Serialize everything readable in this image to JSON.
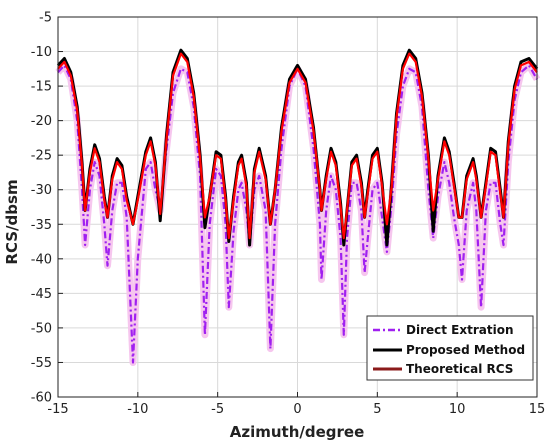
{
  "chart_data": {
    "type": "line",
    "xlabel": "Azimuth/degree",
    "ylabel": "RCS/dbsm",
    "xlim": [
      -15,
      15
    ],
    "ylim": [
      -60,
      -5
    ],
    "xticks": [
      -15,
      -10,
      -5,
      0,
      5,
      10,
      15
    ],
    "yticks": [
      -60,
      -55,
      -50,
      -45,
      -40,
      -35,
      -30,
      -25,
      -20,
      -15,
      -10,
      -5
    ],
    "grid": true,
    "legend_position": "bottom-right",
    "colors": {
      "direct": "#a020f0",
      "direct_band": "#f6c6ee",
      "proposed": "#000000",
      "theoretical": "#8b1a1a",
      "theoretical_display": "#ff0000"
    },
    "series": [
      {
        "name": "Direct Extration",
        "style": "dashdot",
        "points": [
          [
            -15,
            -13
          ],
          [
            -14.6,
            -12
          ],
          [
            -14.2,
            -14
          ],
          [
            -13.8,
            -20
          ],
          [
            -13.5,
            -30
          ],
          [
            -13.3,
            -38
          ],
          [
            -13.0,
            -30
          ],
          [
            -12.7,
            -26
          ],
          [
            -12.4,
            -28
          ],
          [
            -12.1,
            -35
          ],
          [
            -11.9,
            -41
          ],
          [
            -11.6,
            -33
          ],
          [
            -11.3,
            -29
          ],
          [
            -11.0,
            -29
          ],
          [
            -10.7,
            -34
          ],
          [
            -10.3,
            -55
          ],
          [
            -10.0,
            -40
          ],
          [
            -9.5,
            -27
          ],
          [
            -9.2,
            -26
          ],
          [
            -8.9,
            -30
          ],
          [
            -8.6,
            -33
          ],
          [
            -8.2,
            -24
          ],
          [
            -7.8,
            -16
          ],
          [
            -7.3,
            -12.5
          ],
          [
            -6.9,
            -13
          ],
          [
            -6.5,
            -18
          ],
          [
            -6.1,
            -28
          ],
          [
            -5.8,
            -51
          ],
          [
            -5.5,
            -35
          ],
          [
            -5.1,
            -27
          ],
          [
            -4.8,
            -28
          ],
          [
            -4.5,
            -35
          ],
          [
            -4.3,
            -47
          ],
          [
            -4.0,
            -36
          ],
          [
            -3.7,
            -30
          ],
          [
            -3.5,
            -29
          ],
          [
            -3.2,
            -33
          ],
          [
            -3.0,
            -38
          ],
          [
            -2.7,
            -30
          ],
          [
            -2.4,
            -28
          ],
          [
            -2.0,
            -33
          ],
          [
            -1.7,
            -53
          ],
          [
            -1.4,
            -35
          ],
          [
            -1.0,
            -24
          ],
          [
            -0.5,
            -15
          ],
          [
            0.0,
            -12.5
          ],
          [
            0.5,
            -15
          ],
          [
            1.0,
            -24
          ],
          [
            1.4,
            -35
          ],
          [
            1.5,
            -43
          ],
          [
            1.8,
            -33
          ],
          [
            2.1,
            -28
          ],
          [
            2.4,
            -30
          ],
          [
            2.7,
            -37
          ],
          [
            2.9,
            -51
          ],
          [
            3.1,
            -37
          ],
          [
            3.4,
            -29
          ],
          [
            3.7,
            -29
          ],
          [
            4.0,
            -33
          ],
          [
            4.2,
            -42
          ],
          [
            4.4,
            -37
          ],
          [
            4.7,
            -30
          ],
          [
            5.0,
            -29
          ],
          [
            5.3,
            -34
          ],
          [
            5.6,
            -39
          ],
          [
            5.9,
            -32
          ],
          [
            6.2,
            -22
          ],
          [
            6.6,
            -15
          ],
          [
            7.0,
            -12.5
          ],
          [
            7.4,
            -13
          ],
          [
            7.8,
            -18
          ],
          [
            8.2,
            -30
          ],
          [
            8.5,
            -37
          ],
          [
            8.8,
            -31
          ],
          [
            9.2,
            -26
          ],
          [
            9.5,
            -29
          ],
          [
            9.8,
            -34
          ],
          [
            10.1,
            -38
          ],
          [
            10.3,
            -43
          ],
          [
            10.6,
            -33
          ],
          [
            11.0,
            -29
          ],
          [
            11.2,
            -33
          ],
          [
            11.5,
            -47
          ],
          [
            11.8,
            -33
          ],
          [
            12.1,
            -29
          ],
          [
            12.4,
            -29
          ],
          [
            12.7,
            -35
          ],
          [
            12.9,
            -38
          ],
          [
            13.2,
            -26
          ],
          [
            13.6,
            -17
          ],
          [
            14.0,
            -13
          ],
          [
            14.5,
            -12
          ],
          [
            15,
            -14
          ]
        ]
      },
      {
        "name": "Proposed Method",
        "style": "solid",
        "points": [
          [
            -15,
            -12
          ],
          [
            -14.6,
            -11
          ],
          [
            -14.2,
            -13
          ],
          [
            -13.8,
            -18
          ],
          [
            -13.5,
            -26
          ],
          [
            -13.3,
            -33
          ],
          [
            -13.0,
            -27
          ],
          [
            -12.7,
            -23.5
          ],
          [
            -12.4,
            -25.5
          ],
          [
            -12.1,
            -31
          ],
          [
            -11.9,
            -34
          ],
          [
            -11.6,
            -28
          ],
          [
            -11.3,
            -25.5
          ],
          [
            -11.0,
            -26.5
          ],
          [
            -10.7,
            -31
          ],
          [
            -10.3,
            -35
          ],
          [
            -10.0,
            -31
          ],
          [
            -9.5,
            -24.5
          ],
          [
            -9.2,
            -22.5
          ],
          [
            -8.9,
            -26
          ],
          [
            -8.6,
            -34.5
          ],
          [
            -8.2,
            -22
          ],
          [
            -7.8,
            -13
          ],
          [
            -7.3,
            -9.8
          ],
          [
            -6.9,
            -11
          ],
          [
            -6.5,
            -16
          ],
          [
            -6.1,
            -25
          ],
          [
            -5.8,
            -35.5
          ],
          [
            -5.5,
            -31
          ],
          [
            -5.1,
            -24.5
          ],
          [
            -4.8,
            -25
          ],
          [
            -4.5,
            -31
          ],
          [
            -4.3,
            -37.5
          ],
          [
            -4.0,
            -31
          ],
          [
            -3.7,
            -26
          ],
          [
            -3.5,
            -25
          ],
          [
            -3.2,
            -29
          ],
          [
            -3.0,
            -38
          ],
          [
            -2.7,
            -27
          ],
          [
            -2.4,
            -24
          ],
          [
            -2.0,
            -28
          ],
          [
            -1.7,
            -35
          ],
          [
            -1.4,
            -30
          ],
          [
            -1.0,
            -21
          ],
          [
            -0.5,
            -14
          ],
          [
            0.0,
            -12
          ],
          [
            0.5,
            -14
          ],
          [
            1.0,
            -21
          ],
          [
            1.4,
            -30
          ],
          [
            1.5,
            -33
          ],
          [
            1.8,
            -28
          ],
          [
            2.1,
            -24
          ],
          [
            2.4,
            -26
          ],
          [
            2.7,
            -32
          ],
          [
            2.9,
            -38
          ],
          [
            3.1,
            -33
          ],
          [
            3.4,
            -26
          ],
          [
            3.7,
            -25
          ],
          [
            4.0,
            -29
          ],
          [
            4.2,
            -34
          ],
          [
            4.4,
            -30
          ],
          [
            4.7,
            -25
          ],
          [
            5.0,
            -24
          ],
          [
            5.3,
            -29
          ],
          [
            5.6,
            -38
          ],
          [
            5.9,
            -29
          ],
          [
            6.2,
            -19
          ],
          [
            6.6,
            -12
          ],
          [
            7.0,
            -9.8
          ],
          [
            7.4,
            -11
          ],
          [
            7.8,
            -16
          ],
          [
            8.2,
            -25
          ],
          [
            8.5,
            -36
          ],
          [
            8.8,
            -28
          ],
          [
            9.2,
            -22.5
          ],
          [
            9.5,
            -24.5
          ],
          [
            9.8,
            -29
          ],
          [
            10.1,
            -34
          ],
          [
            10.3,
            -34
          ],
          [
            10.6,
            -28
          ],
          [
            11.0,
            -25.5
          ],
          [
            11.2,
            -28
          ],
          [
            11.5,
            -34
          ],
          [
            11.8,
            -29
          ],
          [
            12.1,
            -24
          ],
          [
            12.4,
            -24.5
          ],
          [
            12.7,
            -30
          ],
          [
            12.9,
            -34
          ],
          [
            13.2,
            -23
          ],
          [
            13.6,
            -15
          ],
          [
            14.0,
            -11.5
          ],
          [
            14.5,
            -11
          ],
          [
            15,
            -12.5
          ]
        ]
      },
      {
        "name": "Theoretical RCS",
        "style": "solid",
        "points": [
          [
            -15,
            -12.5
          ],
          [
            -14.6,
            -11.5
          ],
          [
            -14.2,
            -13.5
          ],
          [
            -13.8,
            -18.5
          ],
          [
            -13.5,
            -26.5
          ],
          [
            -13.3,
            -33
          ],
          [
            -13.0,
            -27.5
          ],
          [
            -12.7,
            -24
          ],
          [
            -12.4,
            -26
          ],
          [
            -12.1,
            -31.5
          ],
          [
            -11.9,
            -34
          ],
          [
            -11.6,
            -28.5
          ],
          [
            -11.3,
            -26
          ],
          [
            -11.0,
            -27
          ],
          [
            -10.7,
            -31.5
          ],
          [
            -10.3,
            -35
          ],
          [
            -10.0,
            -31.5
          ],
          [
            -9.5,
            -25
          ],
          [
            -9.2,
            -23
          ],
          [
            -8.9,
            -26.5
          ],
          [
            -8.6,
            -33.5
          ],
          [
            -8.2,
            -22.5
          ],
          [
            -7.8,
            -13.5
          ],
          [
            -7.3,
            -10.3
          ],
          [
            -6.9,
            -11.5
          ],
          [
            -6.5,
            -16.5
          ],
          [
            -6.1,
            -25.5
          ],
          [
            -5.8,
            -34
          ],
          [
            -5.5,
            -31
          ],
          [
            -5.1,
            -25
          ],
          [
            -4.8,
            -25.5
          ],
          [
            -4.5,
            -31.5
          ],
          [
            -4.3,
            -37
          ],
          [
            -4.0,
            -31.5
          ],
          [
            -3.7,
            -26.5
          ],
          [
            -3.5,
            -25.5
          ],
          [
            -3.2,
            -29.5
          ],
          [
            -3.0,
            -37
          ],
          [
            -2.7,
            -27.5
          ],
          [
            -2.4,
            -24.5
          ],
          [
            -2.0,
            -28.5
          ],
          [
            -1.7,
            -35
          ],
          [
            -1.4,
            -30
          ],
          [
            -1.0,
            -21.5
          ],
          [
            -0.5,
            -14.5
          ],
          [
            0.0,
            -12.5
          ],
          [
            0.5,
            -14.5
          ],
          [
            1.0,
            -21.5
          ],
          [
            1.4,
            -30
          ],
          [
            1.5,
            -33
          ],
          [
            1.8,
            -28.5
          ],
          [
            2.1,
            -24.5
          ],
          [
            2.4,
            -26.5
          ],
          [
            2.7,
            -32.5
          ],
          [
            2.9,
            -37
          ],
          [
            3.1,
            -33
          ],
          [
            3.4,
            -26.5
          ],
          [
            3.7,
            -25.5
          ],
          [
            4.0,
            -29.5
          ],
          [
            4.2,
            -34
          ],
          [
            4.4,
            -30.5
          ],
          [
            4.7,
            -25.5
          ],
          [
            5.0,
            -24.5
          ],
          [
            5.3,
            -29.5
          ],
          [
            5.6,
            -35
          ],
          [
            5.9,
            -29.5
          ],
          [
            6.2,
            -19.5
          ],
          [
            6.6,
            -12.5
          ],
          [
            7.0,
            -10.3
          ],
          [
            7.4,
            -11.5
          ],
          [
            7.8,
            -16.5
          ],
          [
            8.2,
            -25.5
          ],
          [
            8.5,
            -33
          ],
          [
            8.8,
            -28.5
          ],
          [
            9.2,
            -23
          ],
          [
            9.5,
            -25
          ],
          [
            9.8,
            -29.5
          ],
          [
            10.1,
            -34
          ],
          [
            10.3,
            -34
          ],
          [
            10.6,
            -28.5
          ],
          [
            11.0,
            -26
          ],
          [
            11.2,
            -28.5
          ],
          [
            11.5,
            -34
          ],
          [
            11.8,
            -29.5
          ],
          [
            12.1,
            -24.5
          ],
          [
            12.4,
            -25
          ],
          [
            12.7,
            -30.5
          ],
          [
            12.9,
            -34
          ],
          [
            13.2,
            -23.5
          ],
          [
            13.6,
            -15.5
          ],
          [
            14.0,
            -12
          ],
          [
            14.5,
            -11.5
          ],
          [
            15,
            -13
          ]
        ]
      }
    ]
  }
}
